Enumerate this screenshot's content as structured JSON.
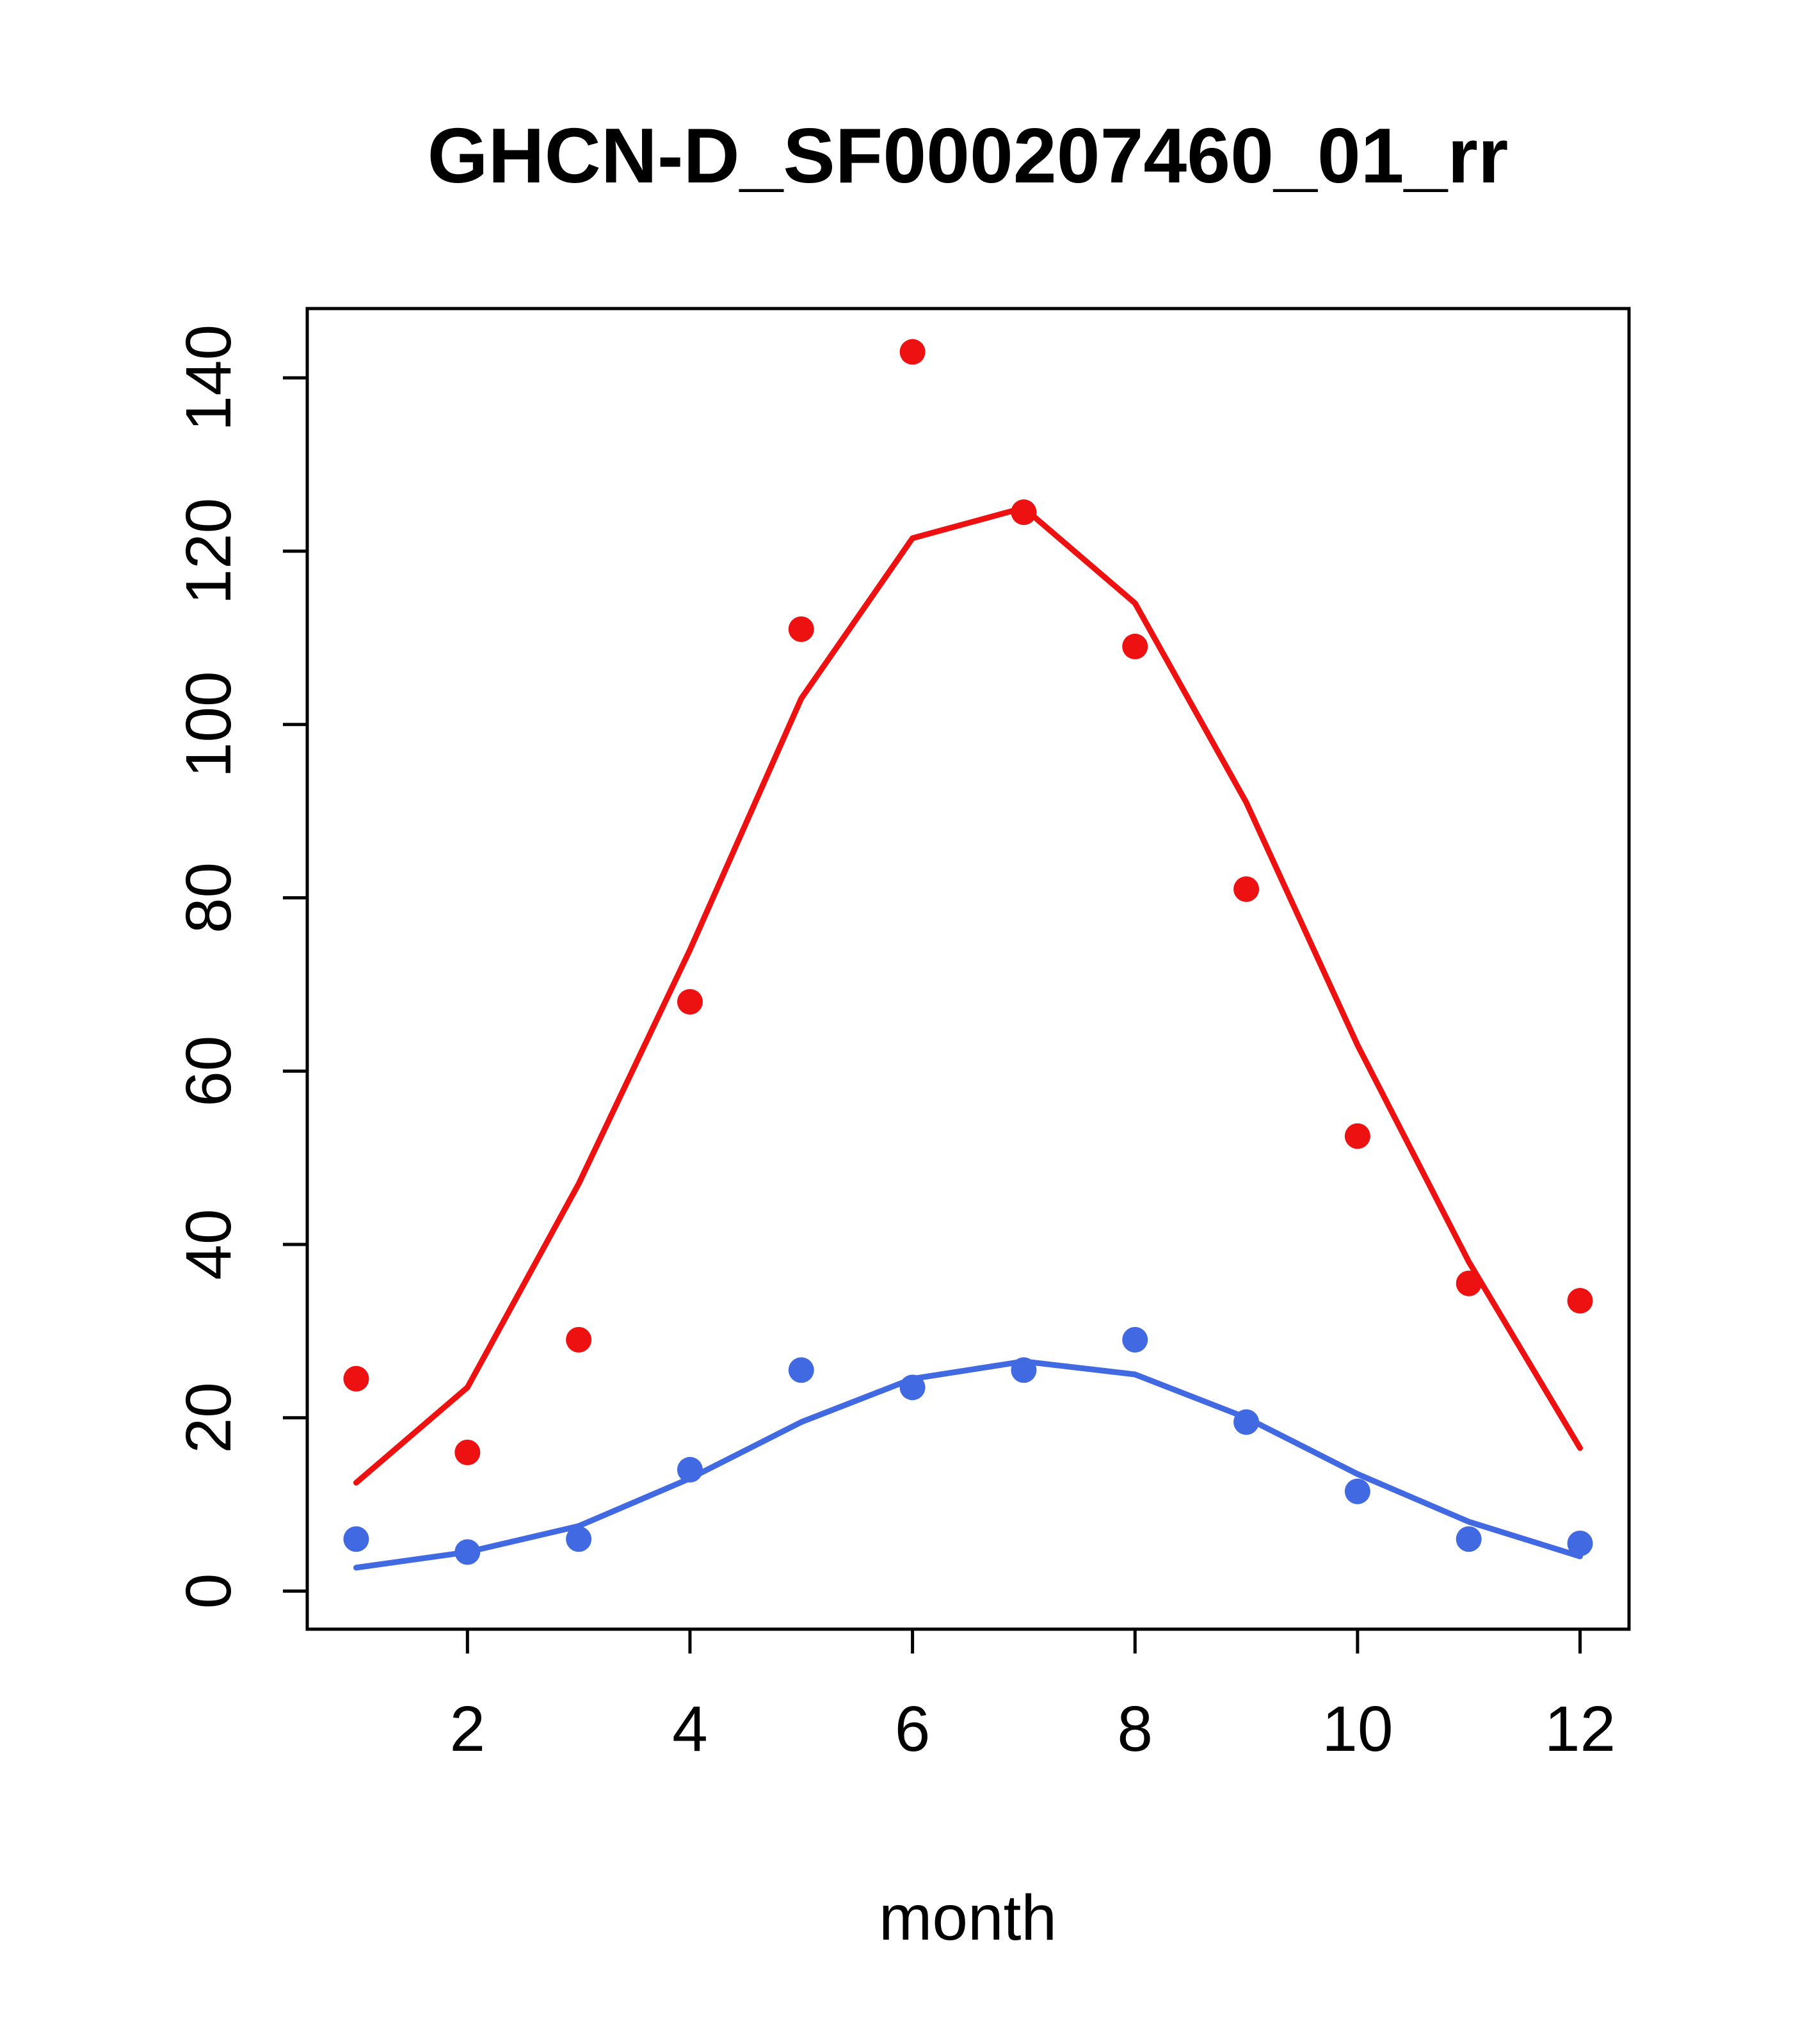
{
  "chart_data": {
    "type": "line",
    "title": "GHCN-D_SF000207460_01_rr",
    "xlabel": "month",
    "ylabel": "",
    "grid": false,
    "legend": "none",
    "x": [
      1,
      2,
      3,
      4,
      5,
      6,
      7,
      8,
      9,
      10,
      11,
      12
    ],
    "xticks": [
      2,
      4,
      6,
      8,
      10,
      12
    ],
    "yticks": [
      0,
      20,
      40,
      60,
      80,
      100,
      120,
      140
    ],
    "xlim": [
      0.56,
      12.44
    ],
    "ylim": [
      -4.4,
      148
    ],
    "series": [
      {
        "name": "red-points",
        "type": "scatter",
        "color": "#ee1111",
        "values": [
          24.5,
          16,
          29,
          68,
          111,
          143,
          124.5,
          109,
          81,
          52.5,
          35.5,
          33.5
        ]
      },
      {
        "name": "red-smooth-line",
        "type": "line",
        "color": "#ee1111",
        "values": [
          12.5,
          23.5,
          47,
          74,
          103,
          121.5,
          125,
          114,
          91,
          63,
          38,
          16.5
        ]
      },
      {
        "name": "blue-points",
        "type": "scatter",
        "color": "#4169e1",
        "values": [
          6,
          4.5,
          6,
          14,
          25.5,
          23.5,
          25.5,
          29,
          19.5,
          11.5,
          6,
          5.5
        ]
      },
      {
        "name": "blue-smooth-line",
        "type": "line",
        "color": "#4169e1",
        "values": [
          2.7,
          4.5,
          7.5,
          13,
          19.5,
          24.5,
          26.5,
          25,
          20,
          13.5,
          8,
          4
        ]
      }
    ]
  }
}
